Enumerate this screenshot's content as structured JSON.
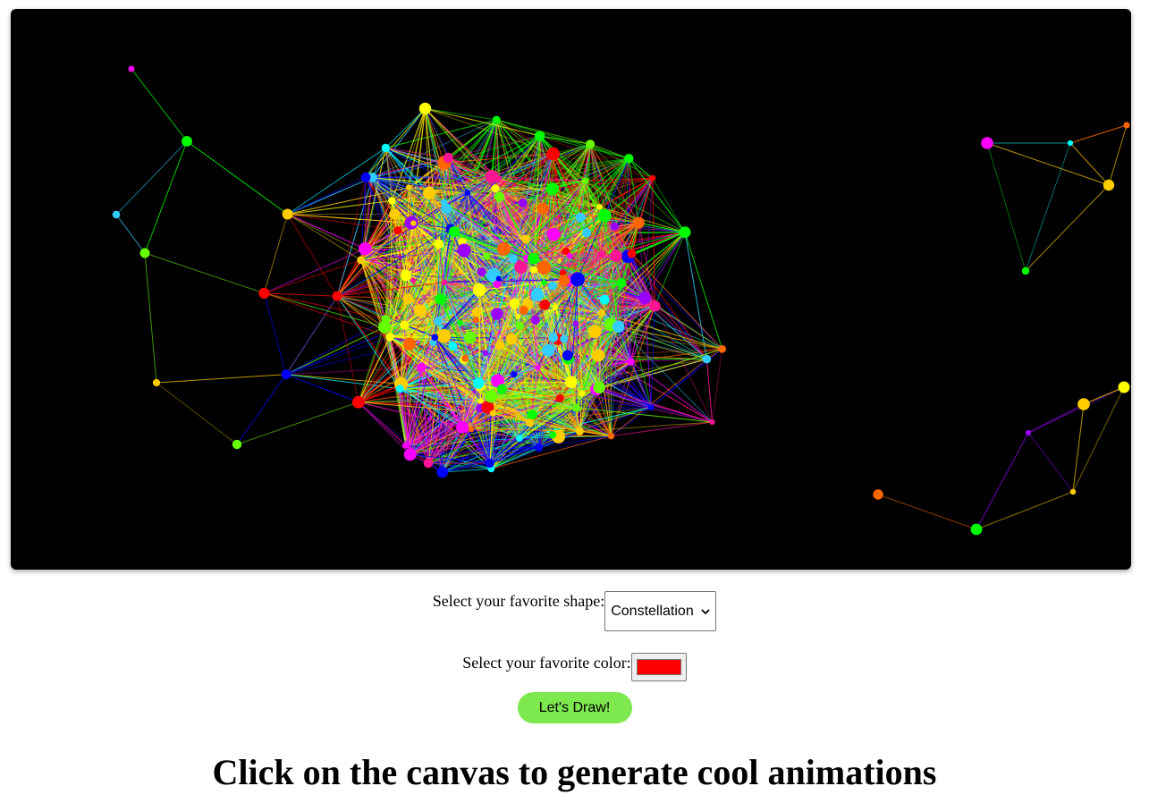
{
  "canvas": {
    "background": "#000000",
    "palette": [
      "#ff0000",
      "#00ff00",
      "#0000ff",
      "#ff00ff",
      "#00ffff",
      "#ffff00",
      "#ff6600",
      "#9900ff",
      "#ffcc00",
      "#33ccff",
      "#ff1493",
      "#66ff00"
    ]
  },
  "controls": {
    "shape_label": "Select your favorite shape:",
    "shape_selected": "Constellation",
    "color_label": "Select your favorite color:",
    "color_value": "#ff0000",
    "draw_button_label": "Let's Draw!",
    "draw_button_color": "#7ee84f"
  },
  "heading": "Click on the canvas to generate cool animations"
}
